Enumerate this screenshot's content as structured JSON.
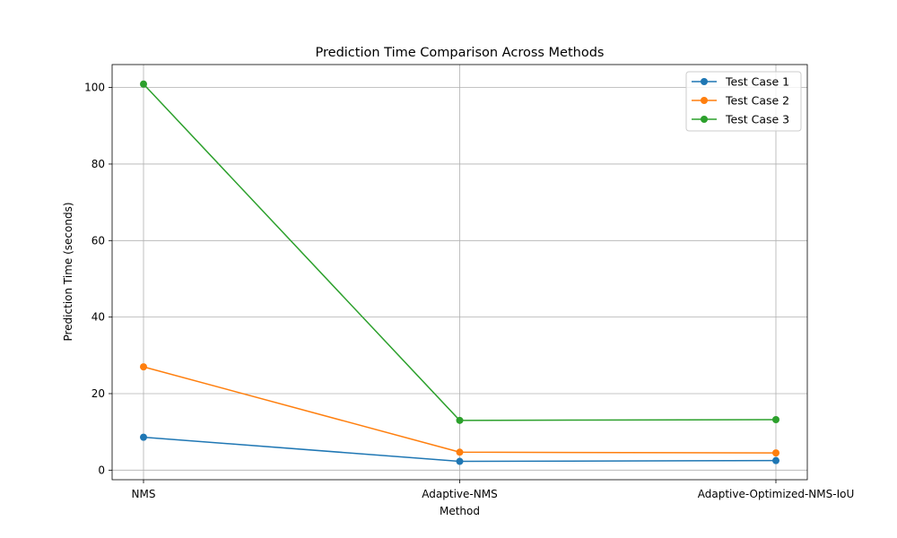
{
  "chart_data": {
    "type": "line",
    "title": "Prediction Time Comparison Across Methods",
    "xlabel": "Method",
    "ylabel": "Prediction Time (seconds)",
    "categories": [
      "NMS",
      "Adaptive-NMS",
      "Adaptive-Optimized-NMS-IoU"
    ],
    "ylim": [
      -2.5,
      106
    ],
    "yticks": [
      0,
      20,
      40,
      60,
      80,
      100
    ],
    "grid": true,
    "legend_position": "top-right",
    "series": [
      {
        "name": "Test Case 1",
        "color": "#1f77b4",
        "values": [
          8.6,
          2.3,
          2.5
        ]
      },
      {
        "name": "Test Case 2",
        "color": "#ff7f0e",
        "values": [
          27.0,
          4.7,
          4.5
        ]
      },
      {
        "name": "Test Case 3",
        "color": "#2ca02c",
        "values": [
          100.9,
          13.0,
          13.2
        ]
      }
    ]
  }
}
